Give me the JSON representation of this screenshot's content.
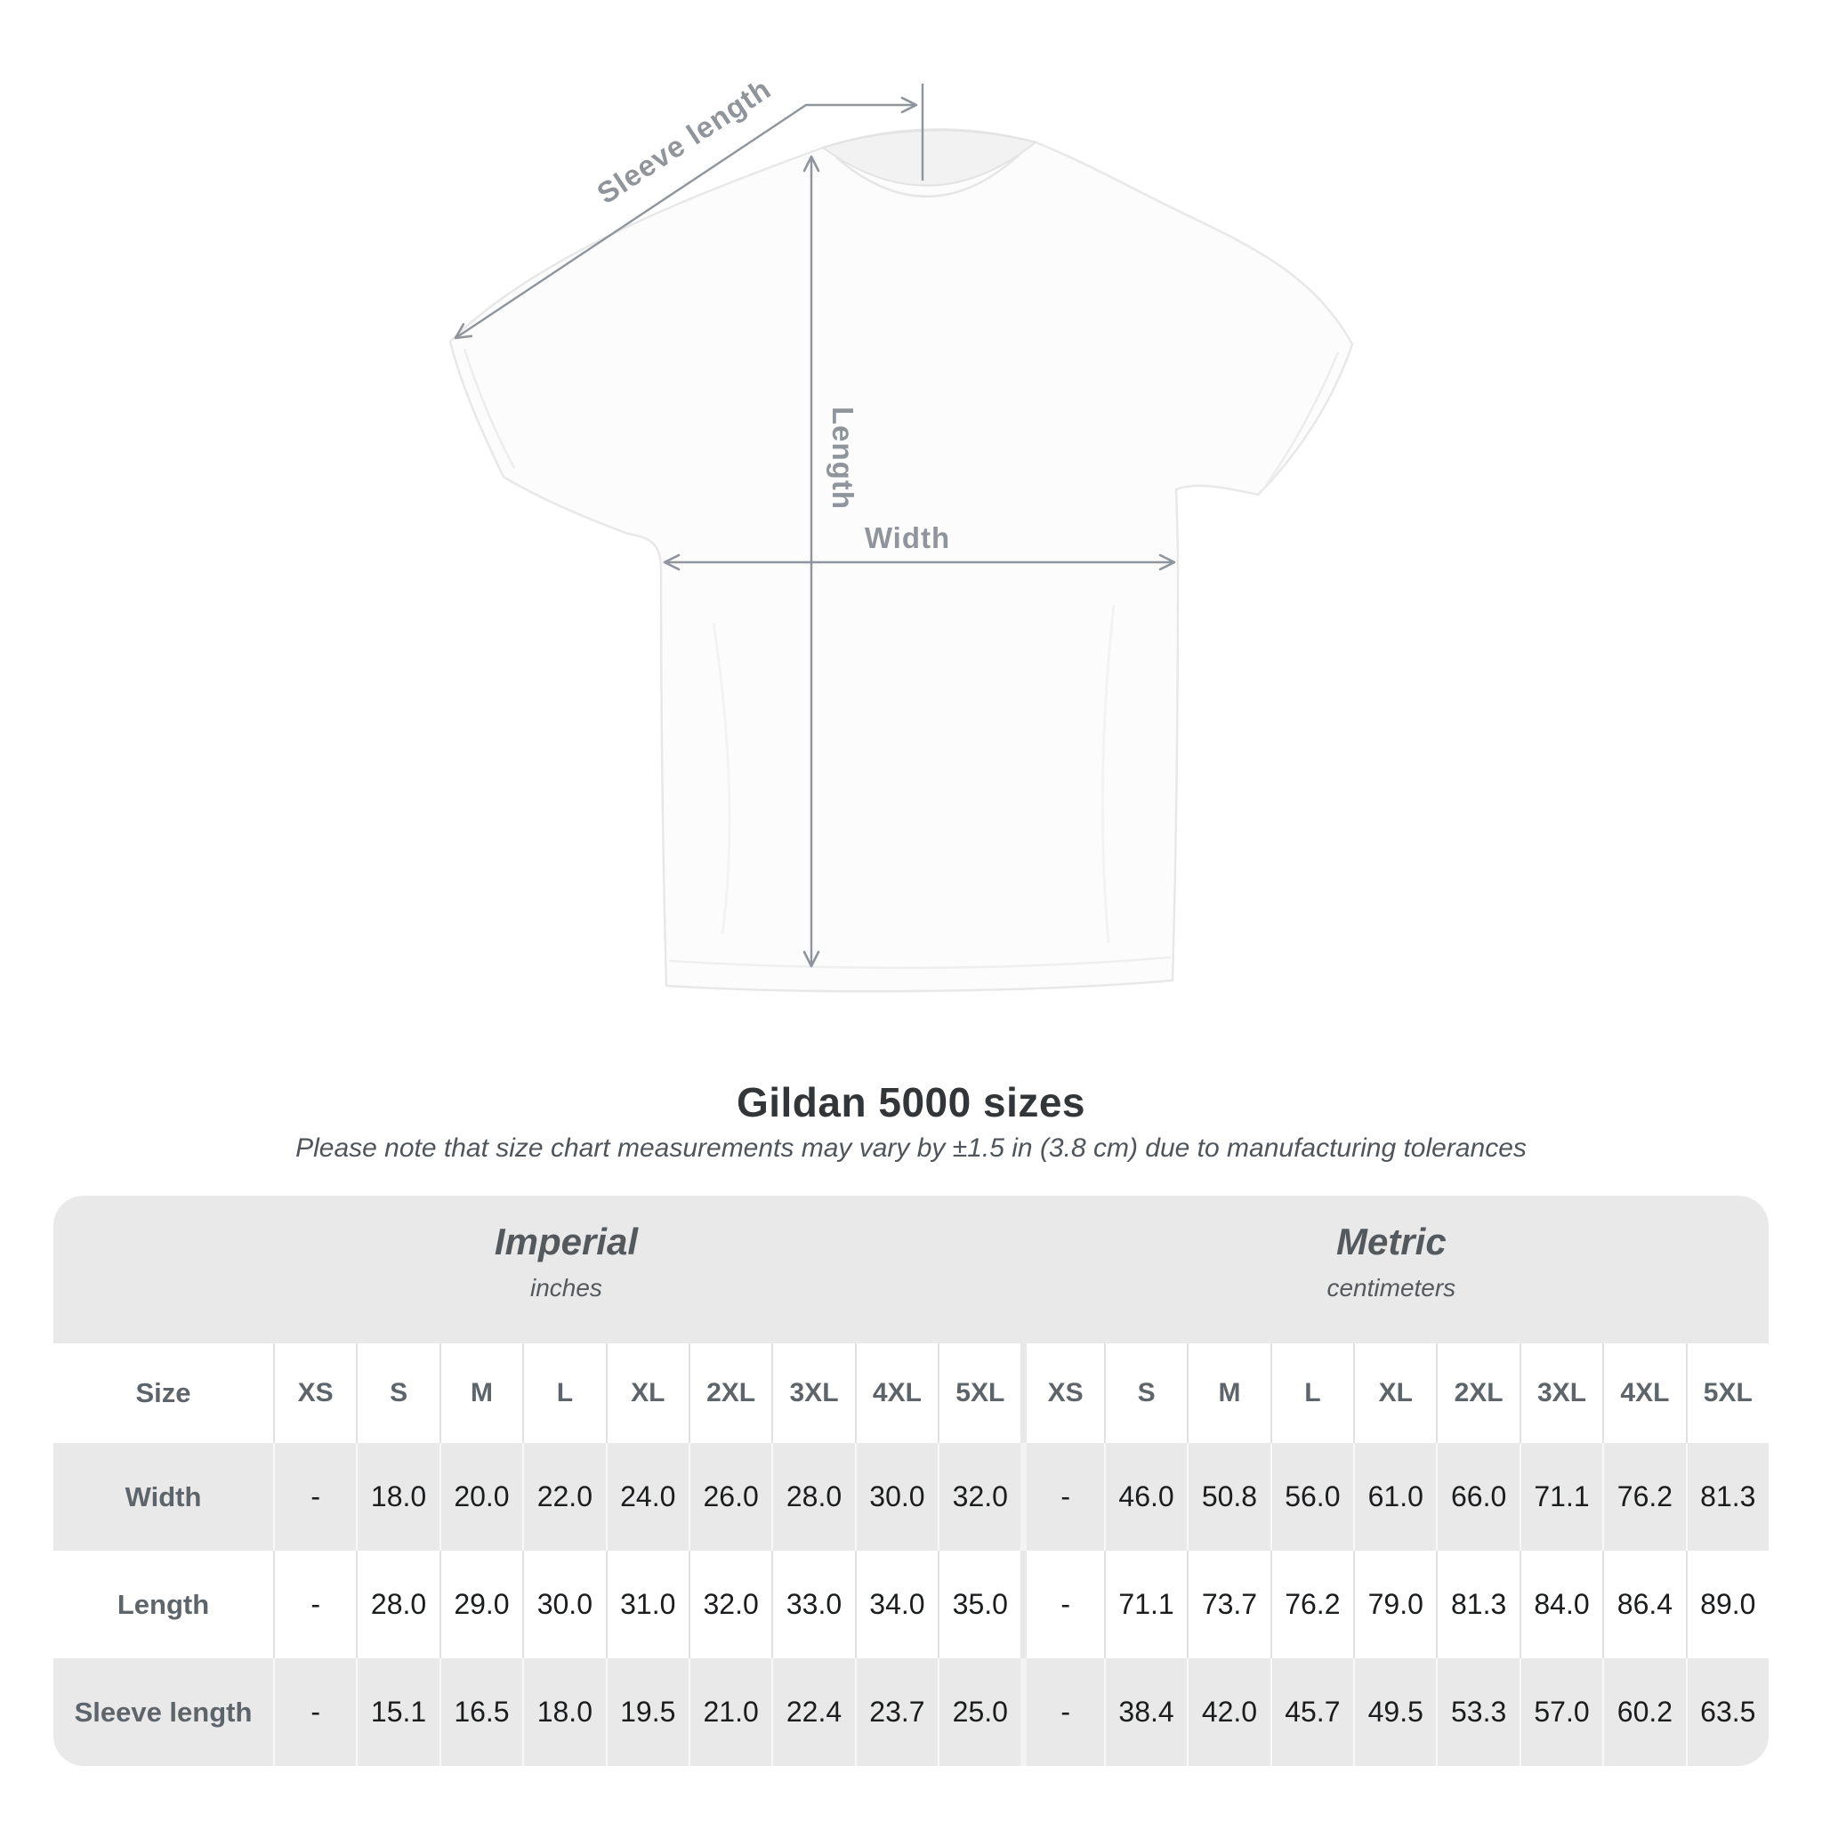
{
  "title": "Gildan 5000 sizes",
  "subtitle": "Please note that size chart measurements may vary by ±1.5 in (3.8 cm) due to manufacturing tolerances",
  "diagram": {
    "labels": {
      "sleeve": "Sleeve length",
      "length": "Length",
      "width": "Width"
    }
  },
  "chart_data": {
    "type": "table",
    "title": "Gildan 5000 sizes",
    "note": "Please note that size chart measurements may vary by ±1.5 in (3.8 cm) due to manufacturing tolerances",
    "sections": [
      {
        "name": "Imperial",
        "unit": "inches"
      },
      {
        "name": "Metric",
        "unit": "centimeters"
      }
    ],
    "size_header": "Size",
    "sizes": [
      "XS",
      "S",
      "M",
      "L",
      "XL",
      "2XL",
      "3XL",
      "4XL",
      "5XL"
    ],
    "rows": [
      {
        "label": "Width",
        "imperial": [
          "-",
          "18.0",
          "20.0",
          "22.0",
          "24.0",
          "26.0",
          "28.0",
          "30.0",
          "32.0"
        ],
        "metric": [
          "-",
          "46.0",
          "50.8",
          "56.0",
          "61.0",
          "66.0",
          "71.1",
          "76.2",
          "81.3"
        ]
      },
      {
        "label": "Length",
        "imperial": [
          "-",
          "28.0",
          "29.0",
          "30.0",
          "31.0",
          "32.0",
          "33.0",
          "34.0",
          "35.0"
        ],
        "metric": [
          "-",
          "71.1",
          "73.7",
          "76.2",
          "79.0",
          "81.3",
          "84.0",
          "86.4",
          "89.0"
        ]
      },
      {
        "label": "Sleeve length",
        "imperial": [
          "-",
          "15.1",
          "16.5",
          "18.0",
          "19.5",
          "21.0",
          "22.4",
          "23.7",
          "25.0"
        ],
        "metric": [
          "-",
          "38.4",
          "42.0",
          "45.7",
          "49.5",
          "53.3",
          "57.0",
          "60.2",
          "63.5"
        ]
      }
    ]
  },
  "colors": {
    "annotation_gray": "#8f959a",
    "row_shade": "#e9e9e9",
    "value_text": "#1a1c1d",
    "label_text": "#5e656a",
    "title_text": "#333639",
    "shirt_outline": "#e8e8e8"
  }
}
